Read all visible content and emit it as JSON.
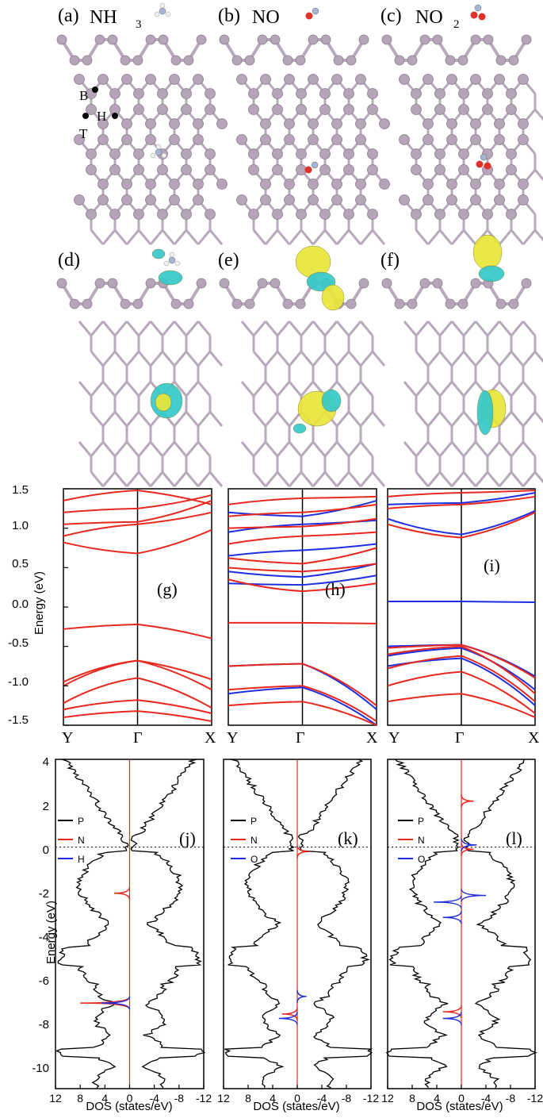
{
  "structure_panels": [
    {
      "label": "(a)",
      "species": "NH",
      "sub": "3"
    },
    {
      "label": "(b)",
      "species": "NO",
      "sub": ""
    },
    {
      "label": "(c)",
      "species": "NO",
      "sub": "2"
    }
  ],
  "site_labels": {
    "bridge": "B",
    "hollow": "H",
    "top": "T"
  },
  "charge_panels": [
    "(d)",
    "(e)",
    "(f)"
  ],
  "colors": {
    "phosphorus": "#b6a4b8",
    "bond": "#b9a9bc",
    "nitrogen": "#a8b6d6",
    "oxygen": "#e0312a",
    "hydrogen": "#f0f0f0",
    "charge_yellow": "#e9e63a",
    "charge_cyan": "#35c9c9",
    "spin_up": "#e8281e",
    "spin_down": "#1f2fe0",
    "dos_P": "#000000"
  },
  "chart_data": [
    {
      "panel": "(g)",
      "type": "line",
      "ylabel": "Energy (eV)",
      "ylim": [
        -1.5,
        1.5
      ],
      "yticks": [
        "-1.5",
        "-1.0",
        "-0.5",
        "0.0",
        "0.5",
        "1.0",
        "1.5"
      ],
      "kpoints": [
        "Y",
        "Γ",
        "X"
      ],
      "series": [
        {
          "spin": "up",
          "values": [
            [
              -0.28,
              -0.22,
              -0.4
            ],
            [
              -0.95,
              -0.68,
              -0.92
            ],
            [
              -1.0,
              -0.68,
              -1.05
            ],
            [
              -1.22,
              -0.9,
              -1.28
            ],
            [
              -1.3,
              -1.18,
              -1.35
            ],
            [
              -1.4,
              -1.32,
              -1.45
            ],
            [
              0.82,
              0.68,
              0.98
            ],
            [
              0.9,
              1.05,
              1.2
            ],
            [
              1.05,
              1.08,
              1.35
            ],
            [
              1.2,
              1.25,
              1.42
            ],
            [
              1.35,
              1.48,
              1.3
            ]
          ]
        }
      ]
    },
    {
      "panel": "(h)",
      "type": "line",
      "ylabel": "Energy (eV)",
      "ylim": [
        -1.5,
        1.5
      ],
      "kpoints": [
        "Y",
        "Γ",
        "X"
      ],
      "series": [
        {
          "spin": "up",
          "values": [
            [
              -0.2,
              -0.2,
              -0.21
            ],
            [
              -0.75,
              -0.72,
              -1.25
            ],
            [
              -1.05,
              -1.0,
              -1.45
            ],
            [
              -1.25,
              -1.2,
              -1.5
            ],
            [
              0.35,
              0.2,
              0.3
            ],
            [
              0.5,
              0.45,
              0.55
            ],
            [
              0.62,
              0.55,
              0.75
            ],
            [
              0.8,
              0.9,
              0.95
            ],
            [
              1.0,
              1.02,
              1.12
            ],
            [
              1.15,
              1.2,
              1.3
            ],
            [
              1.3,
              1.38,
              1.4
            ]
          ]
        },
        {
          "spin": "down",
          "values": [
            [
              0.3,
              0.28,
              0.4
            ],
            [
              0.45,
              0.38,
              0.55
            ],
            [
              0.65,
              0.72,
              0.8
            ],
            [
              0.95,
              1.05,
              1.1
            ],
            [
              1.2,
              1.15,
              1.35
            ],
            [
              -0.75,
              -0.72,
              -1.3
            ],
            [
              -1.1,
              -1.02,
              -1.5
            ]
          ]
        }
      ]
    },
    {
      "panel": "(i)",
      "type": "line",
      "ylabel": "Energy (eV)",
      "ylim": [
        -1.5,
        1.5
      ],
      "kpoints": [
        "Y",
        "Γ",
        "X"
      ],
      "series": [
        {
          "spin": "up",
          "values": [
            [
              -0.52,
              -0.48,
              -0.9
            ],
            [
              -0.6,
              -0.5,
              -1.1
            ],
            [
              -0.78,
              -0.62,
              -1.2
            ],
            [
              -1.0,
              -0.82,
              -1.35
            ],
            [
              -1.2,
              -1.1,
              -1.4
            ],
            [
              1.05,
              0.88,
              1.2
            ],
            [
              1.25,
              1.3,
              1.4
            ],
            [
              1.4,
              1.45,
              1.48
            ]
          ]
        },
        {
          "spin": "down",
          "values": [
            [
              0.07,
              0.07,
              0.06
            ],
            [
              -0.5,
              -0.48,
              -0.88
            ],
            [
              -0.62,
              -0.52,
              -1.05
            ],
            [
              -0.75,
              -0.65,
              -1.25
            ],
            [
              1.12,
              0.92,
              1.22
            ],
            [
              1.3,
              1.32,
              1.45
            ]
          ]
        }
      ]
    },
    {
      "panel": "(j)",
      "type": "line",
      "xlabel": "DOS (states/eV)",
      "ylabel": "Energy (eV)",
      "xlim": [
        12,
        -12
      ],
      "ylim": [
        -11,
        4
      ],
      "xticks": [
        "12",
        "8",
        "4",
        "0",
        "-4",
        "-8",
        "-12"
      ],
      "yticks": [
        "-10",
        "-8",
        "-6",
        "-4",
        "-2",
        "0",
        "2",
        "4"
      ],
      "legend": [
        "P",
        "N",
        "H"
      ],
      "peaks": {
        "N": [
          [
            -2.1,
            2.5
          ],
          [
            -7.1,
            8.0
          ]
        ],
        "H": [
          [
            -7.1,
            4.5
          ]
        ]
      }
    },
    {
      "panel": "(k)",
      "type": "line",
      "xlabel": "DOS (states/eV)",
      "ylabel": "Energy (eV)",
      "xlim": [
        12,
        -12
      ],
      "ylim": [
        -11,
        4
      ],
      "xticks": [
        "12",
        "8",
        "4",
        "0",
        "-4",
        "-8",
        "-12"
      ],
      "legend": [
        "P",
        "N",
        "O"
      ],
      "peaks": {
        "N": [
          [
            -0.2,
            -2.0
          ],
          [
            -7.6,
            2.5
          ]
        ],
        "O": [
          [
            -7.8,
            3.0
          ],
          [
            -6.8,
            -1.5
          ]
        ]
      }
    },
    {
      "panel": "(l)",
      "type": "line",
      "xlabel": "DOS (states/eV)",
      "ylabel": "Energy (eV)",
      "xlim": [
        12,
        -12
      ],
      "ylim": [
        -11,
        4
      ],
      "xticks": [
        "12",
        "8",
        "4",
        "0",
        "-4",
        "-8",
        "-12"
      ],
      "legend": [
        "P",
        "N",
        "O"
      ],
      "peaks": {
        "N": [
          [
            2.1,
            -2.0
          ],
          [
            -7.5,
            3.0
          ],
          [
            -0.1,
            -2.0
          ]
        ],
        "O": [
          [
            -2.5,
            4.5
          ],
          [
            -3.2,
            3.0
          ],
          [
            -2.2,
            -4.0
          ],
          [
            -7.8,
            3.0
          ],
          [
            0.1,
            -2.5
          ]
        ]
      }
    }
  ]
}
